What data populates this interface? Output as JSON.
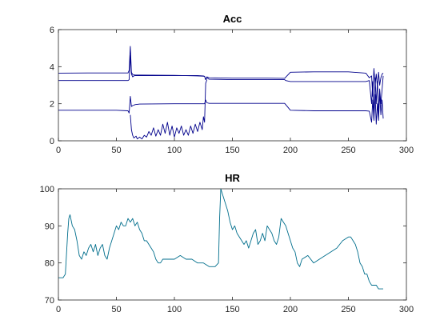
{
  "chart_data": [
    {
      "type": "line",
      "title": "Acc",
      "xlabel": "",
      "ylabel": "",
      "xlim": [
        0,
        300
      ],
      "ylim": [
        0,
        6
      ],
      "xticks": [
        0,
        50,
        100,
        150,
        200,
        250,
        300
      ],
      "yticks": [
        0,
        2,
        4,
        6
      ],
      "grid": false,
      "color": "#00008b",
      "series": [
        {
          "x": [
            0,
            25,
            50,
            58,
            60,
            61,
            62,
            63,
            64,
            65,
            66,
            70,
            80,
            100,
            120,
            126,
            127,
            128,
            130,
            150,
            180,
            195,
            200,
            220,
            250,
            265,
            268,
            270,
            271,
            272,
            273,
            274,
            275,
            276,
            277,
            278,
            279,
            280
          ],
          "y": [
            3.65,
            3.66,
            3.66,
            3.66,
            3.66,
            3.8,
            5.1,
            3.7,
            3.58,
            3.56,
            3.55,
            3.55,
            3.54,
            3.53,
            3.5,
            3.48,
            3.3,
            3.45,
            3.4,
            3.38,
            3.38,
            3.37,
            3.7,
            3.72,
            3.72,
            3.65,
            3.4,
            3.5,
            2.4,
            3.9,
            3.0,
            3.6,
            2.9,
            3.7,
            3.0,
            3.4,
            3.6,
            3.65
          ]
        },
        {
          "x": [
            0,
            25,
            50,
            60,
            61,
            62,
            63,
            64,
            65,
            66,
            70,
            100,
            120,
            125,
            126,
            127,
            128,
            130,
            150,
            195,
            196,
            200,
            220,
            250,
            265,
            268,
            270,
            271,
            272,
            273,
            274,
            275,
            276,
            277,
            278,
            280
          ],
          "y": [
            3.25,
            3.25,
            3.25,
            3.25,
            3.3,
            4.6,
            3.6,
            3.45,
            3.5,
            3.52,
            3.52,
            3.52,
            3.52,
            3.5,
            3.48,
            3.3,
            3.4,
            3.32,
            3.3,
            3.3,
            3.25,
            3.2,
            3.2,
            3.2,
            3.2,
            3.25,
            2.0,
            3.2,
            1.2,
            3.4,
            2.0,
            3.2,
            1.5,
            2.8,
            2.0,
            3.5
          ]
        },
        {
          "x": [
            0,
            25,
            50,
            60,
            61,
            62,
            63,
            64,
            65,
            66,
            70,
            100,
            125,
            126,
            127,
            128,
            130,
            150,
            195,
            198,
            200,
            220,
            250,
            260,
            265,
            268,
            270,
            271,
            272,
            273,
            274,
            275,
            276,
            277,
            278,
            279,
            280
          ],
          "y": [
            1.65,
            1.65,
            1.65,
            1.62,
            1.5,
            2.4,
            1.85,
            1.9,
            1.92,
            1.95,
            1.98,
            2.0,
            2.0,
            2.0,
            2.2,
            2.05,
            2.02,
            2.02,
            2.02,
            1.8,
            1.65,
            1.62,
            1.62,
            1.62,
            1.62,
            1.6,
            1.0,
            2.2,
            1.1,
            2.5,
            0.9,
            2.0,
            1.1,
            2.6,
            1.4,
            2.2,
            1.2
          ]
        },
        {
          "x": [
            62,
            63,
            64,
            65,
            67,
            68,
            70,
            72,
            74,
            76,
            78,
            80,
            82,
            84,
            86,
            88,
            90,
            92,
            94,
            96,
            98,
            100,
            102,
            104,
            106,
            108,
            110,
            112,
            114,
            116,
            118,
            120,
            122,
            124,
            125,
            126,
            127,
            128
          ],
          "y": [
            1.4,
            0.6,
            0.3,
            0.15,
            0.25,
            0.1,
            0.2,
            0.1,
            0.3,
            0.2,
            0.5,
            0.3,
            0.7,
            0.25,
            0.6,
            0.3,
            0.9,
            0.4,
            1.0,
            0.3,
            0.8,
            0.2,
            0.7,
            0.4,
            0.8,
            0.3,
            0.6,
            0.3,
            0.8,
            0.4,
            0.9,
            0.5,
            1.0,
            0.6,
            1.3,
            1.0,
            3.1,
            3.3
          ]
        }
      ]
    },
    {
      "type": "line",
      "title": "HR",
      "xlabel": "",
      "ylabel": "",
      "xlim": [
        0,
        300
      ],
      "ylim": [
        70,
        100
      ],
      "xticks": [
        0,
        50,
        100,
        150,
        200,
        250,
        300
      ],
      "yticks": [
        70,
        80,
        90,
        100
      ],
      "grid": false,
      "color": "#006e8c",
      "series": [
        {
          "x": [
            0,
            4,
            6,
            8,
            9,
            10,
            12,
            14,
            16,
            18,
            20,
            22,
            24,
            26,
            28,
            30,
            32,
            34,
            36,
            38,
            40,
            42,
            44,
            46,
            48,
            50,
            52,
            54,
            56,
            58,
            60,
            62,
            64,
            66,
            68,
            70,
            72,
            74,
            76,
            78,
            80,
            82,
            84,
            86,
            88,
            90,
            95,
            100,
            105,
            110,
            115,
            120,
            125,
            130,
            135,
            138,
            139,
            140,
            141,
            142,
            144,
            146,
            148,
            150,
            152,
            154,
            156,
            158,
            160,
            162,
            164,
            166,
            168,
            170,
            172,
            174,
            176,
            178,
            180,
            182,
            184,
            186,
            188,
            190,
            192,
            194,
            196,
            198,
            200,
            202,
            204,
            206,
            208,
            210,
            215,
            220,
            225,
            230,
            235,
            240,
            245,
            250,
            252,
            254,
            256,
            258,
            260,
            262,
            264,
            266,
            268,
            270,
            272,
            274,
            276,
            278,
            280
          ],
          "y": [
            76,
            76,
            77,
            88,
            92,
            93,
            90,
            89,
            86,
            82,
            81,
            83,
            82,
            84,
            85,
            83,
            85,
            82,
            84,
            85,
            82,
            81,
            84,
            86,
            88,
            90,
            89,
            91,
            90,
            90,
            92,
            91,
            92,
            90,
            91,
            89,
            88,
            86,
            86,
            85,
            84,
            83,
            81,
            80,
            80,
            81,
            81,
            81,
            82,
            81,
            81,
            80,
            80,
            79,
            79,
            80,
            92,
            100,
            99,
            98,
            96,
            94,
            91,
            89,
            90,
            88,
            87,
            86,
            85,
            86,
            84,
            86,
            88,
            89,
            85,
            86,
            88,
            86,
            90,
            89,
            88,
            86,
            85,
            87,
            92,
            91,
            90,
            88,
            86,
            84,
            83,
            80,
            79,
            81,
            82,
            80,
            81,
            82,
            83,
            84,
            86,
            87,
            87,
            86,
            85,
            83,
            80,
            79,
            77,
            77,
            75,
            74,
            74,
            74,
            73,
            73,
            73
          ]
        }
      ]
    }
  ]
}
